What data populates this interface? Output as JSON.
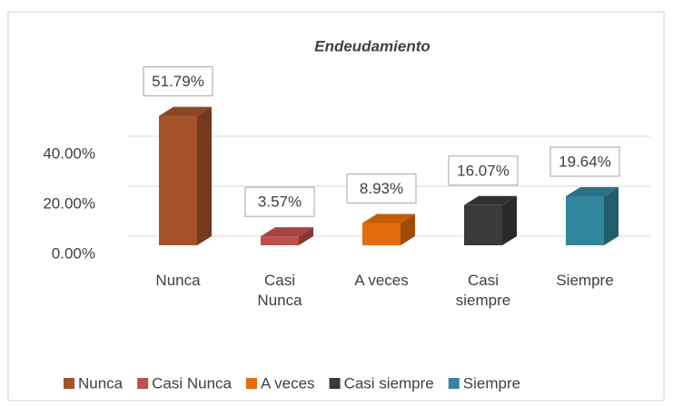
{
  "chart_data": {
    "type": "bar3d",
    "title": "Endeudamiento",
    "categories": [
      "Nunca",
      "Casi Nunca",
      "A veces",
      "Casi siempre",
      "Siempre"
    ],
    "values": [
      51.79,
      3.57,
      8.93,
      16.07,
      19.64
    ],
    "value_labels": [
      "51.79%",
      "3.57%",
      "8.93%",
      "16.07%",
      "19.64%"
    ],
    "colors": [
      "#a5532a",
      "#c0504d",
      "#e46c0a",
      "#3a3a3a",
      "#31859c"
    ],
    "ylim": [
      0,
      60
    ],
    "yticks": [
      {
        "value": 0,
        "label": "0.00%"
      },
      {
        "value": 20,
        "label": "20.00%"
      },
      {
        "value": 40,
        "label": "40.00%"
      }
    ],
    "grid": true,
    "legend": "bottom"
  }
}
